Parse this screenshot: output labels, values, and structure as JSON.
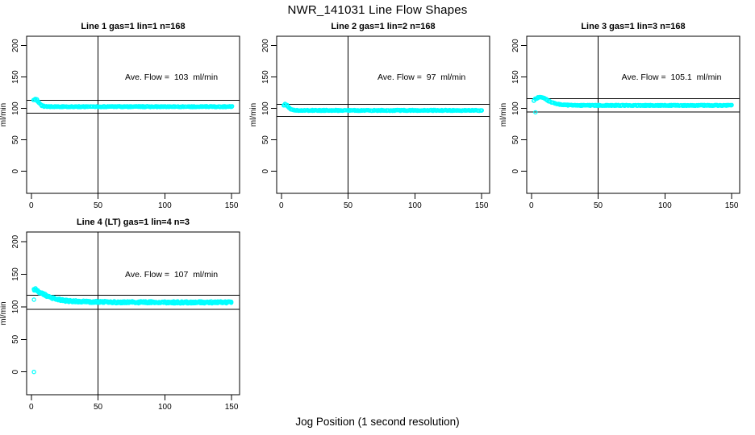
{
  "figure": {
    "title": "NWR_141031  Line Flow Shapes",
    "xlabel": "Jog Position (1 second resolution)"
  },
  "chart_data": {
    "type": "scatter",
    "title": "NWR_141031  Line Flow Shapes",
    "xlabel": "Jog Position (1 second resolution)",
    "ylabel": "ml/min",
    "point_color": "#00ffff",
    "axis_color": "#000000",
    "xlim": [
      -3.5,
      156
    ],
    "ylim": [
      -35,
      215
    ],
    "x_ticks": [
      0,
      50,
      100,
      150
    ],
    "y_ticks": [
      0,
      50,
      100,
      150,
      200
    ],
    "vline_x": 50,
    "grid": false,
    "legend": null,
    "panels": [
      {
        "title": "Line 1 gas=1 lin=1 n=168",
        "line": 1,
        "gas": 1,
        "lin": 1,
        "n": 168,
        "ave_flow": 103,
        "ave_flow_units": "ml/min",
        "annotation": "Ave. Flow =  103  ml/min",
        "annotation_pos": [
          105,
          150
        ],
        "ref_lines": [
          113.3,
          92.7
        ],
        "band_noise": 0.7,
        "dots_per_x": 2,
        "points": [
          [
            2,
            113
          ],
          [
            3,
            115
          ],
          [
            4,
            114
          ],
          [
            5,
            111
          ],
          [
            6,
            108
          ],
          [
            7,
            106
          ],
          [
            8,
            104.5
          ],
          [
            10,
            103.5
          ],
          [
            13,
            103
          ],
          [
            50,
            103
          ],
          [
            100,
            103
          ],
          [
            150,
            103
          ]
        ],
        "outliers": []
      },
      {
        "title": "Line 2 gas=1 lin=2 n=168",
        "line": 2,
        "gas": 1,
        "lin": 2,
        "n": 168,
        "ave_flow": 97,
        "ave_flow_units": "ml/min",
        "annotation": "Ave. Flow =  97  ml/min",
        "annotation_pos": [
          105,
          150
        ],
        "ref_lines": [
          106.7,
          87.3
        ],
        "band_noise": 0.7,
        "dots_per_x": 2,
        "points": [
          [
            2,
            105
          ],
          [
            3,
            107
          ],
          [
            4,
            105
          ],
          [
            5,
            102.5
          ],
          [
            6,
            100.5
          ],
          [
            7,
            99
          ],
          [
            8,
            98
          ],
          [
            10,
            97.3
          ],
          [
            13,
            97
          ],
          [
            50,
            97
          ],
          [
            100,
            97
          ],
          [
            150,
            97
          ]
        ],
        "outliers": []
      },
      {
        "title": "Line 3 gas=1 lin=3 n=168",
        "line": 3,
        "gas": 1,
        "lin": 3,
        "n": 168,
        "ave_flow": 105.1,
        "ave_flow_units": "ml/min",
        "annotation": "Ave. Flow =  105.1  ml/min",
        "annotation_pos": [
          105,
          150
        ],
        "ref_lines": [
          115.6,
          94.6
        ],
        "band_noise": 0.7,
        "dots_per_x": 2,
        "points": [
          [
            2,
            112
          ],
          [
            3,
            115
          ],
          [
            5,
            117.5
          ],
          [
            7,
            118
          ],
          [
            9,
            117
          ],
          [
            11,
            114.5
          ],
          [
            13,
            112
          ],
          [
            15,
            110
          ],
          [
            18,
            108
          ],
          [
            21,
            106.5
          ],
          [
            25,
            105.5
          ],
          [
            30,
            105.2
          ],
          [
            40,
            105
          ],
          [
            100,
            105
          ],
          [
            150,
            105
          ]
        ],
        "outliers": [
          [
            3,
            94
          ]
        ]
      },
      {
        "title": "Line 4 (LT) gas=1 lin=4 n=3",
        "line": 4,
        "gas": 1,
        "lin": 4,
        "n": 3,
        "ave_flow": 107,
        "ave_flow_units": "ml/min",
        "annotation": "Ave. Flow =  107  ml/min",
        "annotation_pos": [
          105,
          150
        ],
        "ref_lines": [
          117.7,
          96.3
        ],
        "band_noise": 1.6,
        "dots_per_x": 3,
        "points": [
          [
            2,
            126
          ],
          [
            3,
            127
          ],
          [
            4,
            125.5
          ],
          [
            5,
            124
          ],
          [
            6,
            122.5
          ],
          [
            8,
            120.5
          ],
          [
            10,
            118.5
          ],
          [
            12,
            116.5
          ],
          [
            14,
            115
          ],
          [
            17,
            113
          ],
          [
            20,
            111.5
          ],
          [
            24,
            110
          ],
          [
            28,
            109
          ],
          [
            33,
            108.5
          ],
          [
            40,
            108
          ],
          [
            48,
            107.6
          ],
          [
            58,
            107.2
          ],
          [
            70,
            107
          ],
          [
            85,
            107
          ],
          [
            100,
            106.9
          ],
          [
            115,
            106.8
          ],
          [
            130,
            106.9
          ],
          [
            150,
            107
          ]
        ],
        "outliers": [
          [
            2,
            0
          ],
          [
            2,
            111
          ]
        ]
      }
    ]
  }
}
